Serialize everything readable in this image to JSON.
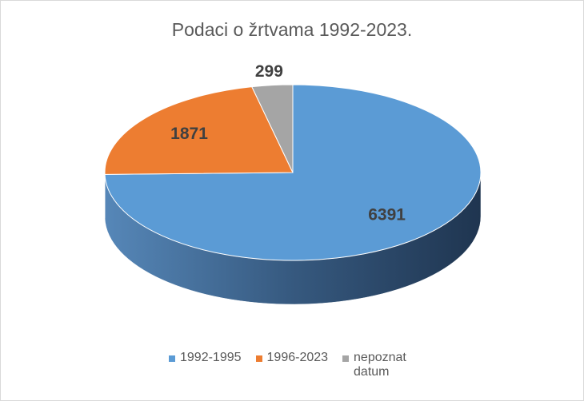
{
  "chart_data": {
    "type": "pie3d",
    "title": "Podaci o žrtvama 1992-2023.",
    "categories": [
      "1992-1995",
      "1996-2023",
      "nepoznat datum"
    ],
    "values": [
      6391,
      1871,
      299
    ],
    "colors": [
      "#5b9bd5",
      "#ed7d31",
      "#a5a5a5"
    ],
    "legend": "bottom"
  }
}
